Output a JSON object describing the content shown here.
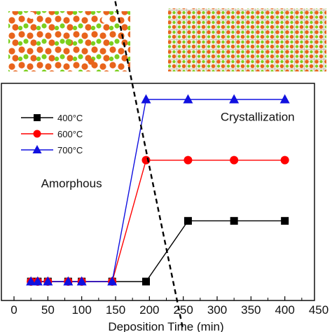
{
  "chart_data": {
    "type": "line",
    "title": "",
    "xlabel": "Deposition Time (min)",
    "ylabel": "",
    "xlim": [
      0,
      450
    ],
    "ylim": [
      0,
      3.3
    ],
    "x_ticks": [
      "0",
      "50",
      "100",
      "150",
      "200",
      "250",
      "300",
      "350",
      "400",
      "450"
    ],
    "y_ticks_shown": false,
    "grid": false,
    "legend_position": "top-left",
    "annotations": [
      {
        "text": "Amorphous",
        "x": 40,
        "y": 1.55
      },
      {
        "text": "Crystallization",
        "x": 305,
        "y": 2.65
      }
    ],
    "boundary_line": {
      "style": "dashed",
      "color": "#000000",
      "x": [
        147,
        250
      ],
      "y": [
        3.6,
        0.0
      ]
    },
    "insets": [
      {
        "description": "amorphous atomic structure snapshot",
        "colors": [
          "#e8641c",
          "#7ccf1e"
        ]
      },
      {
        "description": "crystalline atomic structure snapshot",
        "colors": [
          "#e8641c",
          "#7ccf1e"
        ]
      }
    ],
    "series": [
      {
        "name": "400°C",
        "color": "#000000",
        "marker": "square",
        "x": [
          25,
          35,
          50,
          80,
          100,
          145,
          195,
          257,
          325,
          400
        ],
        "y": [
          0,
          0,
          0,
          0,
          0,
          0,
          0,
          1.0,
          1.0,
          1.0
        ]
      },
      {
        "name": "600°C",
        "color": "#ff0000",
        "marker": "circle",
        "x": [
          25,
          35,
          50,
          80,
          100,
          145,
          195,
          257,
          325,
          400
        ],
        "y": [
          0,
          0,
          0,
          0,
          0,
          0,
          2.0,
          2.0,
          2.0,
          2.0
        ]
      },
      {
        "name": "700°C",
        "color": "#1010e0",
        "marker": "triangle",
        "x": [
          25,
          35,
          50,
          80,
          100,
          145,
          195,
          257,
          325,
          400
        ],
        "y": [
          0,
          0,
          0,
          0,
          0,
          0,
          3.0,
          3.0,
          3.0,
          3.0
        ]
      }
    ]
  }
}
